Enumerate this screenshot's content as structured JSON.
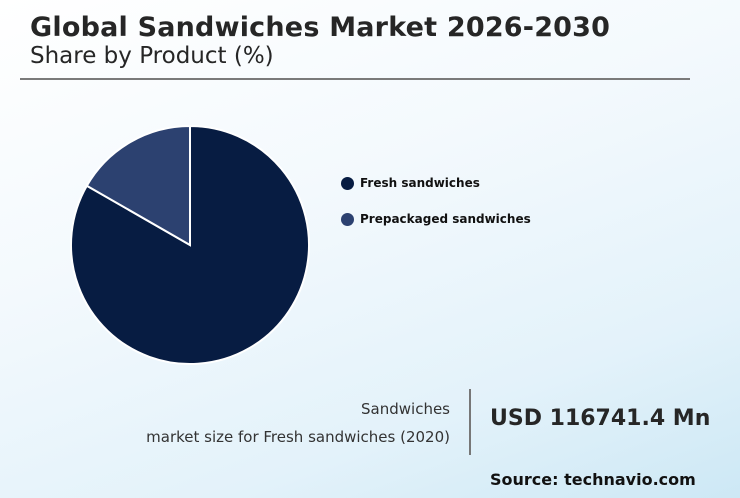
{
  "header": {
    "title": "Global Sandwiches Market 2026-2030",
    "subtitle": "Share by Product (%)"
  },
  "legend": [
    {
      "label": "Fresh sandwiches",
      "color": "#071c42"
    },
    {
      "label": "Prepackaged sandwiches",
      "color": "#2c4170"
    }
  ],
  "stat": {
    "label_line1": "Sandwiches",
    "label_line2": "market size for Fresh sandwiches (2020)",
    "value": "USD 116741.4 Mn"
  },
  "source": "Source: technavio.com",
  "chart_data": {
    "type": "pie",
    "title": "Global Sandwiches Market 2026-2030",
    "subtitle": "Share by Product (%)",
    "categories": [
      "Fresh sandwiches",
      "Prepackaged sandwiches"
    ],
    "values": [
      83.3,
      16.7
    ],
    "colors": [
      "#071c42",
      "#2c4170"
    ],
    "legend_position": "right",
    "start_angle": "12 o'clock, clockwise"
  }
}
